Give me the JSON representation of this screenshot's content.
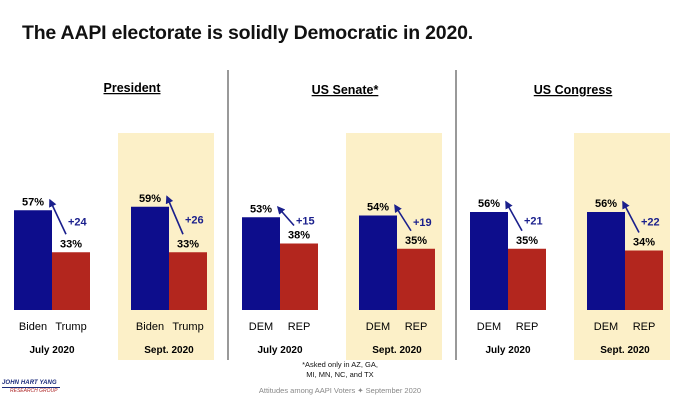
{
  "title": "The AAPI electorate is solidly Democratic in 2020.",
  "footnote": "*Asked only in AZ, GA, MI, MN, NC, and TX",
  "footer": "Attitudes among AAPI Voters ✦ September 2020",
  "logo": {
    "line1": "JOHN HART YANG",
    "line2": "RESEARCH GROUP"
  },
  "colors": {
    "dem": "#0d0d8c",
    "rep": "#b3261e",
    "highlight": "#fcf0c8",
    "arrow": "#1a1f8c",
    "divider": "#333333"
  },
  "chart_data": [
    {
      "type": "bar",
      "title": "President",
      "groups": [
        {
          "period": "July 2020",
          "categories": [
            "Biden",
            "Trump"
          ],
          "values": [
            57,
            33
          ],
          "labels": [
            "57%",
            "33%"
          ],
          "margin": "+24",
          "highlight": false
        },
        {
          "period": "Sept. 2020",
          "categories": [
            "Biden",
            "Trump"
          ],
          "values": [
            59,
            33
          ],
          "labels": [
            "59%",
            "33%"
          ],
          "margin": "+26",
          "highlight": true
        }
      ]
    },
    {
      "type": "bar",
      "title": "US Senate*",
      "groups": [
        {
          "period": "July 2020",
          "categories": [
            "DEM",
            "REP"
          ],
          "values": [
            53,
            38
          ],
          "labels": [
            "53%",
            "38%"
          ],
          "margin": "+15",
          "highlight": false
        },
        {
          "period": "Sept. 2020",
          "categories": [
            "DEM",
            "REP"
          ],
          "values": [
            54,
            35
          ],
          "labels": [
            "54%",
            "35%"
          ],
          "margin": "+19",
          "highlight": true
        }
      ]
    },
    {
      "type": "bar",
      "title": "US Congress",
      "groups": [
        {
          "period": "July 2020",
          "categories": [
            "DEM",
            "REP"
          ],
          "values": [
            56,
            35
          ],
          "labels": [
            "56%",
            "35%"
          ],
          "margin": "+21",
          "highlight": false
        },
        {
          "period": "Sept. 2020",
          "categories": [
            "DEM",
            "REP"
          ],
          "values": [
            56,
            34
          ],
          "labels": [
            "56%",
            "34%"
          ],
          "margin": "+22",
          "highlight": true
        }
      ]
    }
  ]
}
